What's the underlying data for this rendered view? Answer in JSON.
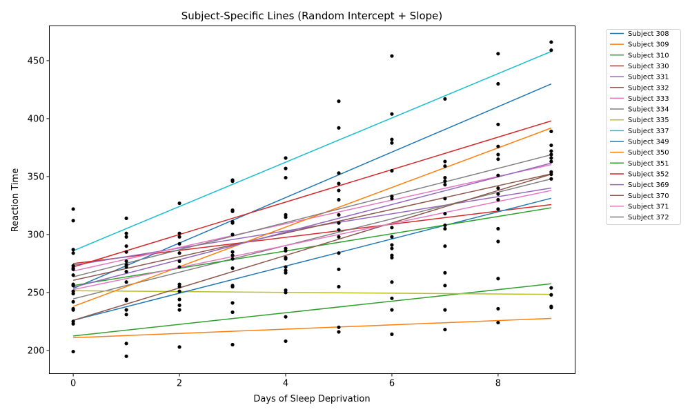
{
  "chart_data": {
    "type": "line",
    "title": "Subject-Specific Lines (Random Intercept + Slope)",
    "xlabel": "Days of Sleep Deprivation",
    "ylabel": "Reaction Time",
    "xlim": [
      -0.45,
      9.45
    ],
    "ylim": [
      180,
      480
    ],
    "xticks": [
      0,
      2,
      4,
      6,
      8
    ],
    "yticks": [
      200,
      250,
      300,
      350,
      400,
      450
    ],
    "grid": false,
    "legend_position": "outside-right",
    "point_color": "#000000",
    "series": [
      {
        "name": "Subject 308",
        "color": "#1f77b4",
        "intercept": 253.5,
        "slope": 19.6
      },
      {
        "name": "Subject 309",
        "color": "#ff7f0e",
        "intercept": 211.0,
        "slope": 1.85
      },
      {
        "name": "Subject 310",
        "color": "#2ca02c",
        "intercept": 212.5,
        "slope": 5.0
      },
      {
        "name": "Subject 330",
        "color": "#d62728",
        "intercept": 275.0,
        "slope": 5.65
      },
      {
        "name": "Subject 331",
        "color": "#9467bd",
        "intercept": 273.5,
        "slope": 7.4
      },
      {
        "name": "Subject 332",
        "color": "#8c564b",
        "intercept": 260.5,
        "slope": 10.2
      },
      {
        "name": "Subject 333",
        "color": "#e377c2",
        "intercept": 268.5,
        "slope": 10.2
      },
      {
        "name": "Subject 334",
        "color": "#7f7f7f",
        "intercept": 244.5,
        "slope": 11.5
      },
      {
        "name": "Subject 335",
        "color": "#bcbd22",
        "intercept": 251.5,
        "slope": -0.35
      },
      {
        "name": "Subject 337",
        "color": "#17becf",
        "intercept": 286.0,
        "slope": 19.1
      },
      {
        "name": "Subject 349",
        "color": "#1f77b4",
        "intercept": 226.0,
        "slope": 11.7
      },
      {
        "name": "Subject 350",
        "color": "#ff7f0e",
        "intercept": 238.0,
        "slope": 17.1
      },
      {
        "name": "Subject 351",
        "color": "#2ca02c",
        "intercept": 256.0,
        "slope": 7.45
      },
      {
        "name": "Subject 352",
        "color": "#d62728",
        "intercept": 272.0,
        "slope": 14.0
      },
      {
        "name": "Subject 369",
        "color": "#9467bd",
        "intercept": 254.5,
        "slope": 11.9
      },
      {
        "name": "Subject 370",
        "color": "#8c564b",
        "intercept": 226.0,
        "slope": 14.0
      },
      {
        "name": "Subject 371",
        "color": "#e377c2",
        "intercept": 252.5,
        "slope": 9.5
      },
      {
        "name": "Subject 372",
        "color": "#7f7f7f",
        "intercept": 263.5,
        "slope": 11.7
      }
    ],
    "points": [
      [
        0,
        322
      ],
      [
        0,
        312
      ],
      [
        0,
        287
      ],
      [
        0,
        284
      ],
      [
        0,
        273
      ],
      [
        0,
        271
      ],
      [
        0,
        270
      ],
      [
        0,
        265
      ],
      [
        0,
        257
      ],
      [
        0,
        256
      ],
      [
        0,
        251
      ],
      [
        0,
        249
      ],
      [
        0,
        242
      ],
      [
        0,
        236
      ],
      [
        0,
        235
      ],
      [
        0,
        225
      ],
      [
        0,
        223
      ],
      [
        0,
        199
      ],
      [
        1,
        314
      ],
      [
        1,
        301
      ],
      [
        1,
        298
      ],
      [
        1,
        290
      ],
      [
        1,
        285
      ],
      [
        1,
        277
      ],
      [
        1,
        274
      ],
      [
        1,
        272
      ],
      [
        1,
        268
      ],
      [
        1,
        259
      ],
      [
        1,
        244
      ],
      [
        1,
        243
      ],
      [
        1,
        235
      ],
      [
        1,
        231
      ],
      [
        1,
        206
      ],
      [
        1,
        195
      ],
      [
        2,
        327
      ],
      [
        2,
        301
      ],
      [
        2,
        298
      ],
      [
        2,
        292
      ],
      [
        2,
        284
      ],
      [
        2,
        277
      ],
      [
        2,
        272
      ],
      [
        2,
        257
      ],
      [
        2,
        255
      ],
      [
        2,
        251
      ],
      [
        2,
        244
      ],
      [
        2,
        239
      ],
      [
        2,
        235
      ],
      [
        2,
        203
      ],
      [
        3,
        347
      ],
      [
        3,
        346
      ],
      [
        3,
        321
      ],
      [
        3,
        320
      ],
      [
        3,
        311
      ],
      [
        3,
        310
      ],
      [
        3,
        300
      ],
      [
        3,
        285
      ],
      [
        3,
        282
      ],
      [
        3,
        279
      ],
      [
        3,
        271
      ],
      [
        3,
        256
      ],
      [
        3,
        255
      ],
      [
        3,
        241
      ],
      [
        3,
        233
      ],
      [
        3,
        205
      ],
      [
        4,
        366
      ],
      [
        4,
        357
      ],
      [
        4,
        349
      ],
      [
        4,
        317
      ],
      [
        4,
        315
      ],
      [
        4,
        288
      ],
      [
        4,
        286
      ],
      [
        4,
        280
      ],
      [
        4,
        279
      ],
      [
        4,
        272
      ],
      [
        4,
        269
      ],
      [
        4,
        267
      ],
      [
        4,
        252
      ],
      [
        4,
        250
      ],
      [
        4,
        229
      ],
      [
        4,
        208
      ],
      [
        5,
        415
      ],
      [
        5,
        392
      ],
      [
        5,
        353
      ],
      [
        5,
        344
      ],
      [
        5,
        338
      ],
      [
        5,
        330
      ],
      [
        5,
        317
      ],
      [
        5,
        310
      ],
      [
        5,
        304
      ],
      [
        5,
        298
      ],
      [
        5,
        284
      ],
      [
        5,
        270
      ],
      [
        5,
        255
      ],
      [
        5,
        220
      ],
      [
        5,
        216
      ],
      [
        6,
        454
      ],
      [
        6,
        404
      ],
      [
        6,
        382
      ],
      [
        6,
        379
      ],
      [
        6,
        355
      ],
      [
        6,
        333
      ],
      [
        6,
        331
      ],
      [
        6,
        306
      ],
      [
        6,
        298
      ],
      [
        6,
        291
      ],
      [
        6,
        288
      ],
      [
        6,
        282
      ],
      [
        6,
        280
      ],
      [
        6,
        259
      ],
      [
        6,
        245
      ],
      [
        6,
        235
      ],
      [
        6,
        214
      ],
      [
        7,
        417
      ],
      [
        7,
        363
      ],
      [
        7,
        359
      ],
      [
        7,
        349
      ],
      [
        7,
        346
      ],
      [
        7,
        343
      ],
      [
        7,
        331
      ],
      [
        7,
        318
      ],
      [
        7,
        308
      ],
      [
        7,
        305
      ],
      [
        7,
        290
      ],
      [
        7,
        267
      ],
      [
        7,
        256
      ],
      [
        7,
        235
      ],
      [
        7,
        218
      ],
      [
        8,
        456
      ],
      [
        8,
        430
      ],
      [
        8,
        395
      ],
      [
        8,
        376
      ],
      [
        8,
        369
      ],
      [
        8,
        365
      ],
      [
        8,
        351
      ],
      [
        8,
        340
      ],
      [
        8,
        335
      ],
      [
        8,
        330
      ],
      [
        8,
        322
      ],
      [
        8,
        305
      ],
      [
        8,
        294
      ],
      [
        8,
        262
      ],
      [
        8,
        236
      ],
      [
        8,
        224
      ],
      [
        9,
        466
      ],
      [
        9,
        459
      ],
      [
        9,
        389
      ],
      [
        9,
        377
      ],
      [
        9,
        372
      ],
      [
        9,
        369
      ],
      [
        9,
        366
      ],
      [
        9,
        363
      ],
      [
        9,
        354
      ],
      [
        9,
        352
      ],
      [
        9,
        348
      ],
      [
        9,
        254
      ],
      [
        9,
        248
      ],
      [
        9,
        238
      ],
      [
        9,
        237
      ]
    ]
  }
}
